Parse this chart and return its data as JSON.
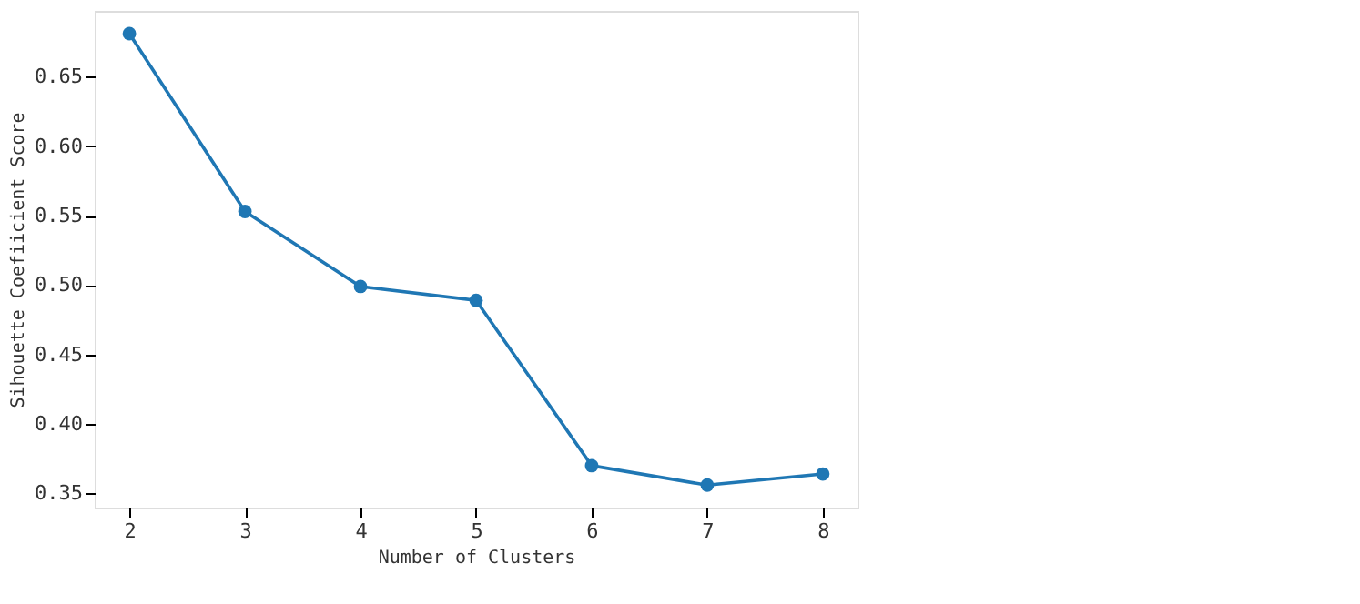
{
  "chart_data": {
    "type": "line",
    "xlabel": "Number of Clusters",
    "ylabel": "Sihouette Coefiicient Score",
    "x": [
      2,
      3,
      4,
      5,
      6,
      7,
      8
    ],
    "series": [
      {
        "color": "#1f77b4",
        "values": [
          0.681,
          0.553,
          0.499,
          0.489,
          0.37,
          0.356,
          0.364
        ]
      }
    ],
    "xlim": [
      1.7,
      8.3
    ],
    "ylim": [
      0.3398,
      0.6974
    ],
    "xticks": [
      2,
      3,
      4,
      5,
      6,
      7,
      8
    ],
    "yticks": [
      {
        "value": 0.35,
        "label": "0.35"
      },
      {
        "value": 0.4,
        "label": "0.40"
      },
      {
        "value": 0.45,
        "label": "0.45"
      },
      {
        "value": 0.5,
        "label": "0.50"
      },
      {
        "value": 0.55,
        "label": "0.55"
      },
      {
        "value": 0.6,
        "label": "0.60"
      },
      {
        "value": 0.65,
        "label": "0.65"
      }
    ],
    "grid": false,
    "marker": "circle",
    "line_style": "solid"
  }
}
